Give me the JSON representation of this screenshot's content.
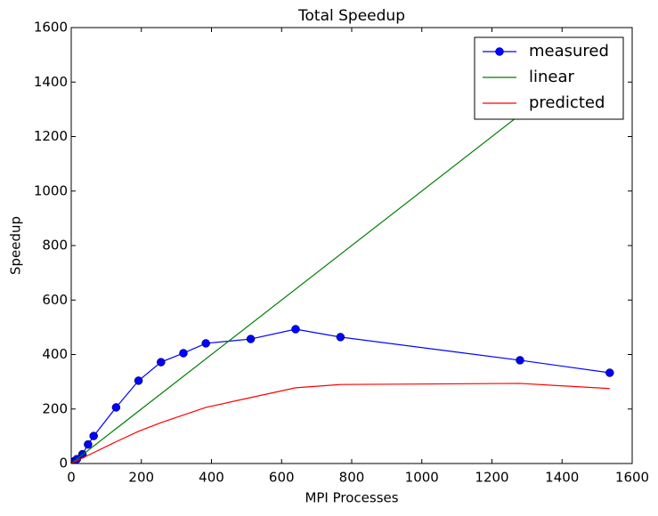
{
  "chart_data": {
    "type": "line",
    "title": "Total Speedup",
    "xlabel": "MPI Processes",
    "ylabel": "Speedup",
    "xlim": [
      0,
      1600
    ],
    "ylim": [
      0,
      1600
    ],
    "xticks": [
      0,
      200,
      400,
      600,
      800,
      1000,
      1200,
      1400,
      1600
    ],
    "yticks": [
      0,
      200,
      400,
      600,
      800,
      1000,
      1200,
      1400,
      1600
    ],
    "legend": "upper right",
    "series": [
      {
        "name": "measured",
        "color": "#0000ff",
        "marker": "circle",
        "x": [
          1,
          2,
          4,
          8,
          16,
          32,
          48,
          64,
          128,
          192,
          256,
          320,
          384,
          512,
          640,
          768,
          1280,
          1536
        ],
        "values": [
          1,
          2,
          4,
          8,
          16,
          34,
          70,
          101,
          206,
          304,
          372,
          405,
          441,
          457,
          493,
          464,
          379,
          333
        ]
      },
      {
        "name": "linear",
        "color": "#008000",
        "x": [
          1,
          1536
        ],
        "values": [
          1,
          1536
        ]
      },
      {
        "name": "predicted",
        "color": "#ff0000",
        "x": [
          1,
          64,
          128,
          192,
          256,
          384,
          512,
          640,
          768,
          1280,
          1536
        ],
        "values": [
          1,
          40,
          80,
          118,
          150,
          206,
          242,
          278,
          290,
          294,
          275
        ]
      }
    ]
  }
}
